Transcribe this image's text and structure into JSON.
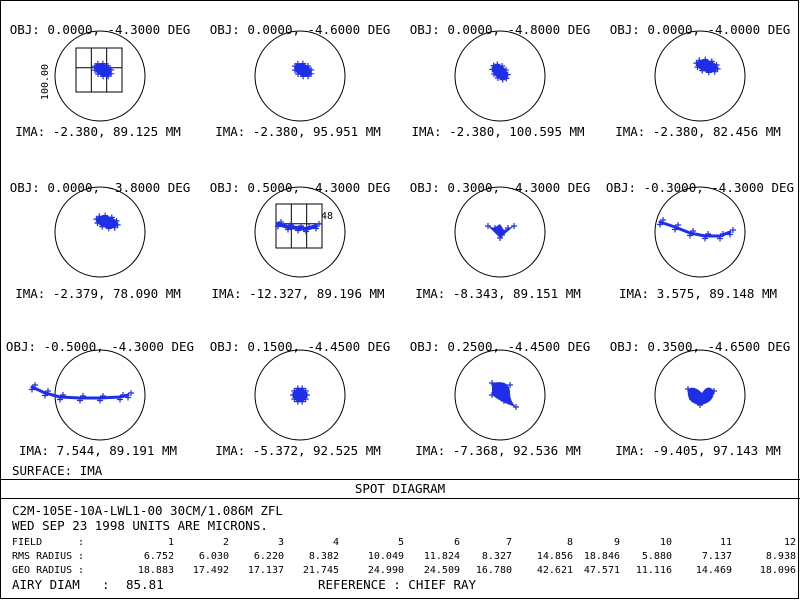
{
  "spots": [
    {
      "obj": "OBJ: 0.0000, -4.3000 DEG",
      "ima": "IMA: -2.380, 89.125 MM",
      "shape": "blob-lower-right",
      "scale_box": true,
      "scale_label": "100.00"
    },
    {
      "obj": "OBJ: 0.0000, -4.6000 DEG",
      "ima": "IMA: -2.380, 95.951 MM",
      "shape": "blob-lower-right"
    },
    {
      "obj": "OBJ: 0.0000, -4.8000 DEG",
      "ima": "IMA: -2.380, 100.595 MM",
      "shape": "blob-diagonal"
    },
    {
      "obj": "OBJ: 0.0000, -4.0000 DEG",
      "ima": "IMA: -2.380, 82.456 MM",
      "shape": "blob-wide"
    },
    {
      "obj": "OBJ: 0.0000, -3.8000 DEG",
      "ima": "IMA: -2.379, 78.090 MM",
      "shape": "blob-wide"
    },
    {
      "obj": "OBJ: 0.5000, -4.3000 DEG",
      "ima": "IMA: -12.327, 89.196 MM",
      "shape": "streak-short",
      "scale_box": true,
      "box_label": "48"
    },
    {
      "obj": "OBJ: 0.3000, -4.3000 DEG",
      "ima": "IMA: -8.343, 89.151 MM",
      "shape": "chevron"
    },
    {
      "obj": "OBJ: -0.3000, -4.3000 DEG",
      "ima": "IMA: 3.575, 89.148 MM",
      "shape": "streak-arc"
    },
    {
      "obj": "OBJ: -0.5000, -4.3000 DEG",
      "ima": "IMA: 7.544, 89.191 MM",
      "shape": "streak-long"
    },
    {
      "obj": "OBJ: 0.1500, -4.4500 DEG",
      "ima": "IMA: -5.372, 92.525 MM",
      "shape": "blob-round"
    },
    {
      "obj": "OBJ: 0.2500, -4.4500 DEG",
      "ima": "IMA: -7.368, 92.536 MM",
      "shape": "teardrop"
    },
    {
      "obj": "OBJ: 0.3500, -4.6500 DEG",
      "ima": "IMA: -9.405, 97.143 MM",
      "shape": "butterfly"
    }
  ],
  "surface_label": "SURFACE: IMA",
  "panel_title": "SPOT DIAGRAM",
  "info": {
    "line1": "C2M-105E-10A-LWL1-00 30CM/1.086M ZFL",
    "line2": "WED SEP 23 1998  UNITS ARE MICRONS.",
    "field_label": "FIELD",
    "field_numbers": [
      "1",
      "2",
      "3",
      "4",
      "5",
      "6",
      "7",
      "8",
      "9",
      "10",
      "11",
      "12"
    ],
    "rms_label": "RMS RADIUS",
    "rms_values": [
      "6.752",
      "6.030",
      "6.220",
      "8.382",
      "10.049",
      "11.824",
      "8.327",
      "14.856",
      "18.846",
      "5.880",
      "7.137",
      "8.938"
    ],
    "geo_label": "GEO RADIUS",
    "geo_values": [
      "18.883",
      "17.492",
      "17.137",
      "21.745",
      "24.990",
      "24.509",
      "16.780",
      "42.621",
      "47.571",
      "11.116",
      "14.469",
      "18.096"
    ],
    "airy_label": "AIRY DIAM",
    "airy_value": "85.81",
    "reference": "REFERENCE  : CHIEF RAY"
  },
  "colors": {
    "spot": "#1f2fe8",
    "ink": "#000000",
    "background": "#ffffff"
  }
}
